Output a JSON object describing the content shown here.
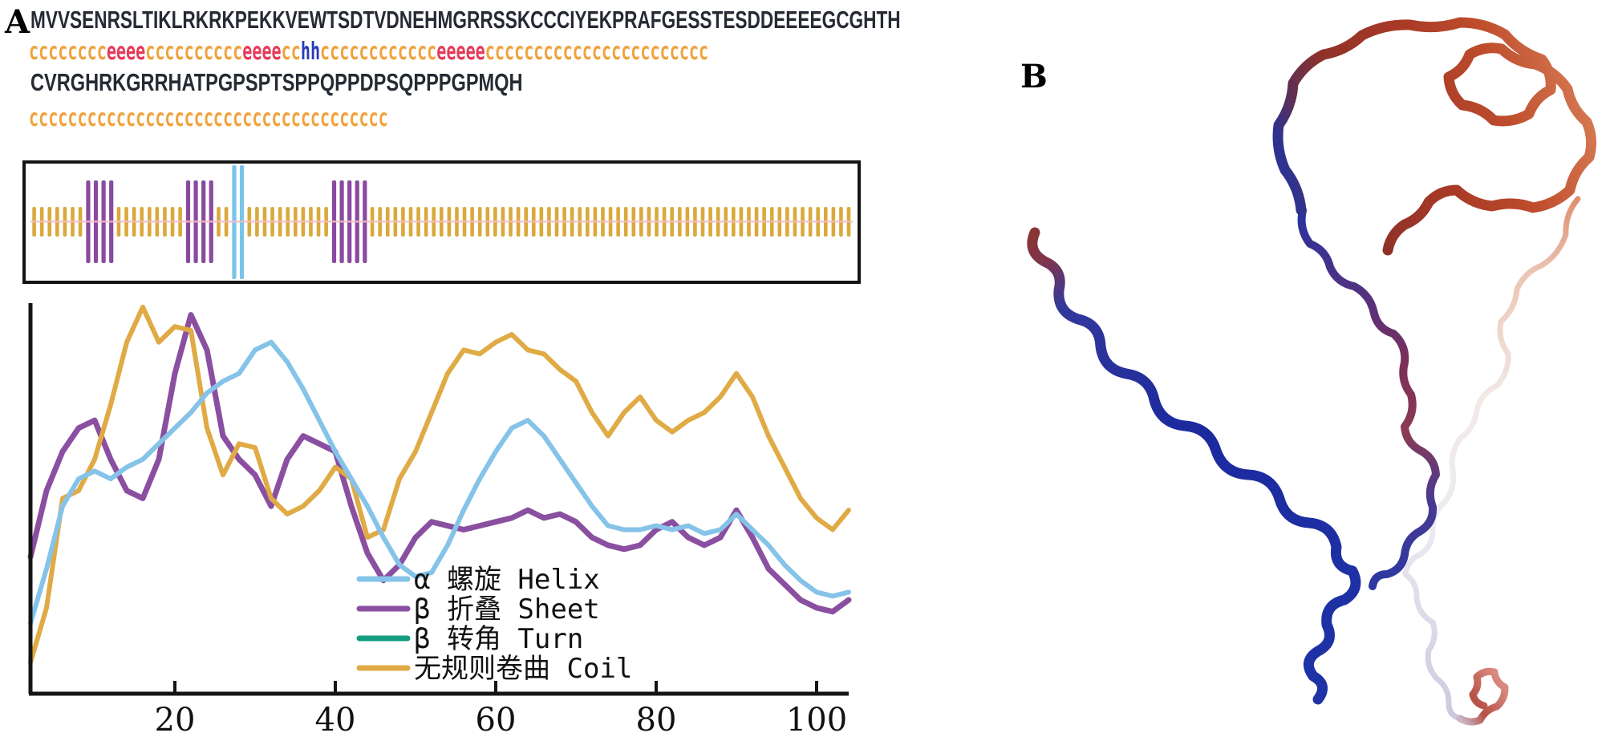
{
  "figure": {
    "panel_a": {
      "label": "A",
      "sequence_line1": "MVVSENRSLTIKLRKRKPEKKVEWTSDTVDNEHMGRRSSKCCCIYEKPRAFGESSTESDDEEEEGCGHTH",
      "ss_line1": [
        {
          "text": "cccccccc",
          "type": "coil"
        },
        {
          "text": "eeee",
          "type": "strand"
        },
        {
          "text": "cccccccccc",
          "type": "coil"
        },
        {
          "text": "eeee",
          "type": "strand"
        },
        {
          "text": "cc",
          "type": "coil"
        },
        {
          "text": "hh",
          "type": "helix"
        },
        {
          "text": "cccccccccccc",
          "type": "coil"
        },
        {
          "text": "eeeee",
          "type": "strand"
        },
        {
          "text": "ccccccccccccccccccccccc",
          "type": "coil"
        }
      ],
      "sequence_line2": "CVRGHRKGRRHATPGPSPTSPPQPPDPSQPPPGPMQH",
      "ss_line2": [
        {
          "text": "ccccccccccccccccccccccccccccccccccccc",
          "type": "coil"
        }
      ],
      "ss_letter_colors": {
        "coil": "#f0a23c",
        "strand": "#e63a5a",
        "helix": "#2a3ab5"
      },
      "feature_map": {
        "total_positions": 107,
        "strand_regions": [
          [
            8,
            11
          ],
          [
            21,
            24
          ],
          [
            40,
            44
          ]
        ],
        "helix_regions": [
          [
            27,
            28
          ]
        ],
        "bar_colors": {
          "coil": "#d9a93c",
          "strand": "#8a4aa0",
          "helix": "#79c4e8",
          "baseline": "#f2bcc8"
        },
        "border_color": "#141414"
      },
      "chart_data": {
        "type": "line",
        "title": "",
        "xlabel": "",
        "ylabel": "",
        "x_ticks": [
          20,
          40,
          60,
          80,
          100
        ],
        "xlim": [
          2,
          105
        ],
        "ylim": [
          0,
          1
        ],
        "grid": false,
        "legend_position": "inside lower-right",
        "x": [
          2,
          4,
          6,
          8,
          10,
          12,
          14,
          16,
          18,
          20,
          22,
          24,
          26,
          28,
          30,
          32,
          34,
          36,
          38,
          40,
          42,
          44,
          46,
          48,
          50,
          52,
          54,
          56,
          58,
          60,
          62,
          64,
          66,
          68,
          70,
          72,
          74,
          76,
          78,
          80,
          82,
          84,
          86,
          88,
          90,
          92,
          94,
          96,
          98,
          100,
          102,
          104
        ],
        "series": [
          {
            "name": "α 螺旋 Helix",
            "color": "#85c3e8",
            "values": [
              0.18,
              0.32,
              0.48,
              0.55,
              0.57,
              0.55,
              0.58,
              0.6,
              0.64,
              0.68,
              0.72,
              0.77,
              0.8,
              0.82,
              0.88,
              0.9,
              0.85,
              0.78,
              0.7,
              0.62,
              0.55,
              0.48,
              0.4,
              0.33,
              0.3,
              0.31,
              0.38,
              0.47,
              0.55,
              0.62,
              0.68,
              0.7,
              0.66,
              0.6,
              0.54,
              0.48,
              0.43,
              0.42,
              0.42,
              0.43,
              0.42,
              0.43,
              0.41,
              0.42,
              0.46,
              0.42,
              0.38,
              0.33,
              0.29,
              0.26,
              0.25,
              0.26
            ]
          },
          {
            "name": "β 折叠 Sheet",
            "color": "#8a4fa0",
            "values": [
              0.35,
              0.52,
              0.62,
              0.68,
              0.7,
              0.6,
              0.52,
              0.5,
              0.6,
              0.82,
              0.97,
              0.88,
              0.66,
              0.6,
              0.56,
              0.48,
              0.6,
              0.66,
              0.64,
              0.62,
              0.48,
              0.36,
              0.29,
              0.33,
              0.4,
              0.44,
              0.43,
              0.42,
              0.43,
              0.44,
              0.45,
              0.47,
              0.45,
              0.46,
              0.44,
              0.4,
              0.38,
              0.37,
              0.38,
              0.42,
              0.44,
              0.4,
              0.38,
              0.4,
              0.47,
              0.4,
              0.32,
              0.28,
              0.24,
              0.22,
              0.21,
              0.24
            ]
          },
          {
            "name": "β 转角 Turn",
            "color": "#139c80",
            "values": null,
            "note": "legend entry visible; curve not visible in plot area"
          },
          {
            "name": "无规则卷曲 Coil",
            "color": "#e0aa45",
            "values": [
              0.08,
              0.22,
              0.5,
              0.52,
              0.6,
              0.74,
              0.9,
              0.99,
              0.9,
              0.94,
              0.93,
              0.68,
              0.56,
              0.64,
              0.63,
              0.5,
              0.46,
              0.48,
              0.52,
              0.58,
              0.55,
              0.4,
              0.42,
              0.55,
              0.62,
              0.72,
              0.82,
              0.88,
              0.87,
              0.9,
              0.92,
              0.88,
              0.87,
              0.83,
              0.8,
              0.72,
              0.66,
              0.72,
              0.76,
              0.7,
              0.67,
              0.7,
              0.72,
              0.76,
              0.82,
              0.76,
              0.66,
              0.58,
              0.5,
              0.45,
              0.42,
              0.47
            ]
          }
        ]
      }
    },
    "panel_b": {
      "label": "B",
      "ribbon_colors": {
        "n_terminus": "#1b2a9c",
        "middle": "#f2e9e6",
        "c_terminus": "#b03a28"
      }
    }
  }
}
